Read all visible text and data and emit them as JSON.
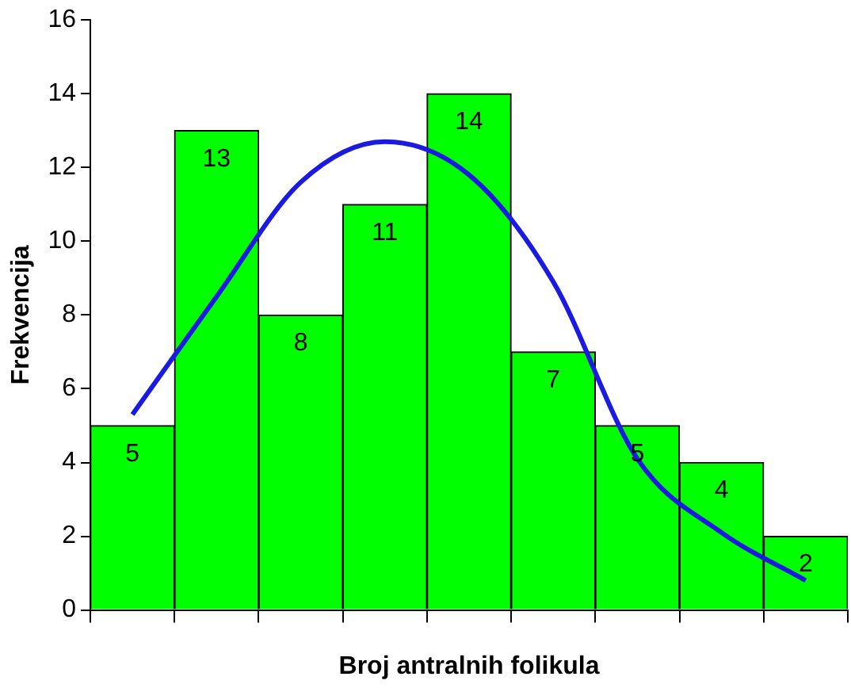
{
  "chart_data": {
    "type": "bar",
    "xlabel": "Broj antralnih folikula",
    "ylabel": "Frekvencija",
    "categories": [
      null,
      null,
      null,
      null,
      null,
      null,
      null,
      null,
      null
    ],
    "series": [
      {
        "color": "#00ff00",
        "values": [
          5,
          13,
          8,
          11,
          14,
          7,
          5,
          4,
          2
        ],
        "value_labels": [
          "5",
          "13",
          "8",
          "11",
          "14",
          "7",
          "5",
          "4",
          "2"
        ]
      },
      {
        "type": "line",
        "color": "#1a1ae0",
        "values": [
          5.3,
          8.5,
          11.6,
          12.7,
          11.8,
          8.9,
          4.1,
          2.1,
          0.8
        ],
        "marker": "none"
      }
    ],
    "ylim": [
      0,
      16
    ],
    "yticks": [
      0,
      2,
      4,
      6,
      8,
      10,
      12,
      14,
      16
    ],
    "grid": false,
    "legend": false,
    "tick_labels": "y"
  }
}
